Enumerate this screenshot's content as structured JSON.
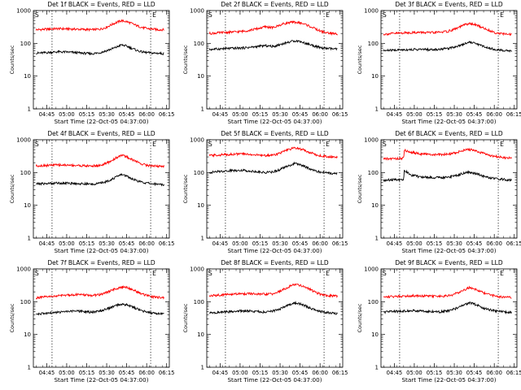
{
  "figure_colors": {
    "events": "#000000",
    "lld": "#ff0000",
    "marker": "#000000"
  },
  "chart_data": [
    {
      "type": "line",
      "title": "Det 1f BLACK = Events, RED = LLD",
      "xlabel": "Start Time (22-Oct-05 04:37:00)",
      "ylabel": "Counts/sec",
      "ylog": true,
      "ylim": [
        1,
        1000
      ],
      "xticklabels": [
        "04:45",
        "05:00",
        "05:15",
        "05:30",
        "05:45",
        "06:00",
        "06:15"
      ],
      "yticklabels": [
        "1",
        "10",
        "100",
        "1000"
      ],
      "x_range_minutes": [
        -2,
        100
      ],
      "x_minutes": [
        0,
        8,
        16,
        24,
        30,
        36,
        42,
        48,
        52,
        56,
        60,
        64,
        68,
        72,
        76,
        80,
        84,
        88,
        92,
        96
      ],
      "series": [
        {
          "color": "#ff0000",
          "values": [
            260,
            270,
            280,
            275,
            270,
            265,
            260,
            270,
            300,
            360,
            430,
            490,
            460,
            400,
            340,
            300,
            280,
            270,
            260,
            260
          ]
        },
        {
          "color": "#000000",
          "values": [
            50,
            52,
            55,
            54,
            52,
            50,
            48,
            52,
            58,
            66,
            75,
            90,
            82,
            70,
            60,
            54,
            52,
            50,
            50,
            48
          ]
        }
      ],
      "markers": {
        "left_minutes": 12,
        "right_minutes": 86,
        "corner_labels": [
          "S",
          "E"
        ]
      }
    },
    {
      "type": "line",
      "title": "Det 2f BLACK = Events, RED = LLD",
      "xlabel": "Start Time (22-Oct-05 04:37:00)",
      "ylabel": "Counts/sec",
      "ylog": true,
      "ylim": [
        1,
        1000
      ],
      "xticklabels": [
        "04:45",
        "05:00",
        "05:15",
        "05:30",
        "05:45",
        "06:00",
        "06:15"
      ],
      "yticklabels": [
        "1",
        "10",
        "100",
        "1000"
      ],
      "x_range_minutes": [
        -2,
        100
      ],
      "x_minutes": [
        0,
        8,
        16,
        24,
        30,
        36,
        42,
        48,
        52,
        56,
        60,
        64,
        68,
        72,
        76,
        80,
        84,
        88,
        92,
        96
      ],
      "series": [
        {
          "color": "#ff0000",
          "values": [
            200,
            210,
            220,
            230,
            250,
            280,
            320,
            300,
            350,
            400,
            430,
            440,
            420,
            380,
            320,
            270,
            230,
            210,
            200,
            190
          ]
        },
        {
          "color": "#000000",
          "values": [
            65,
            68,
            70,
            72,
            75,
            80,
            85,
            80,
            90,
            100,
            110,
            120,
            115,
            100,
            90,
            80,
            72,
            70,
            68,
            66
          ]
        }
      ],
      "markers": {
        "left_minutes": 12,
        "right_minutes": 86,
        "corner_labels": [
          "S",
          "E"
        ]
      }
    },
    {
      "type": "line",
      "title": "Det 3f BLACK = Events, RED = LLD",
      "xlabel": "Start Time (22-Oct-05 04:37:00)",
      "ylabel": "Counts/sec",
      "ylog": true,
      "ylim": [
        1,
        1000
      ],
      "xticklabels": [
        "04:45",
        "05:00",
        "05:15",
        "05:30",
        "05:45",
        "06:00",
        "06:15"
      ],
      "yticklabels": [
        "1",
        "10",
        "100",
        "1000"
      ],
      "x_range_minutes": [
        -2,
        100
      ],
      "x_minutes": [
        0,
        8,
        16,
        24,
        30,
        36,
        42,
        48,
        52,
        56,
        60,
        64,
        68,
        72,
        76,
        80,
        84,
        88,
        92,
        96
      ],
      "series": [
        {
          "color": "#ff0000",
          "values": [
            190,
            200,
            210,
            215,
            215,
            210,
            220,
            230,
            260,
            300,
            360,
            400,
            380,
            330,
            280,
            240,
            210,
            200,
            190,
            185
          ]
        },
        {
          "color": "#000000",
          "values": [
            60,
            62,
            64,
            65,
            65,
            64,
            66,
            70,
            76,
            84,
            95,
            110,
            102,
            90,
            78,
            70,
            65,
            62,
            60,
            58
          ]
        }
      ],
      "markers": {
        "left_minutes": 12,
        "right_minutes": 86,
        "corner_labels": [
          "S",
          "E"
        ]
      }
    },
    {
      "type": "line",
      "title": "Det 4f BLACK = Events, RED = LLD",
      "xlabel": "Start Time (22-Oct-05 04:37:00)",
      "ylabel": "Counts/sec",
      "ylog": true,
      "ylim": [
        1,
        1000
      ],
      "xticklabels": [
        "04:45",
        "05:00",
        "05:15",
        "05:30",
        "05:45",
        "06:00",
        "06:15"
      ],
      "yticklabels": [
        "1",
        "10",
        "100",
        "1000"
      ],
      "x_range_minutes": [
        -2,
        100
      ],
      "x_minutes": [
        0,
        8,
        16,
        24,
        30,
        36,
        42,
        48,
        52,
        56,
        60,
        64,
        68,
        72,
        76,
        80,
        84,
        88,
        92,
        96
      ],
      "series": [
        {
          "color": "#ff0000",
          "values": [
            160,
            165,
            170,
            168,
            165,
            160,
            158,
            165,
            185,
            220,
            280,
            340,
            300,
            250,
            210,
            180,
            165,
            160,
            155,
            155
          ]
        },
        {
          "color": "#000000",
          "values": [
            45,
            46,
            48,
            47,
            46,
            45,
            44,
            47,
            52,
            60,
            72,
            88,
            78,
            65,
            55,
            50,
            47,
            45,
            44,
            43
          ]
        }
      ],
      "markers": {
        "left_minutes": 12,
        "right_minutes": 86,
        "corner_labels": [
          "S",
          "E"
        ]
      }
    },
    {
      "type": "line",
      "title": "Det 5f BLACK = Events, RED = LLD",
      "xlabel": "Start Time (22-Oct-05 04:37:00)",
      "ylabel": "Counts/sec",
      "ylog": true,
      "ylim": [
        1,
        1000
      ],
      "xticklabels": [
        "04:45",
        "05:00",
        "05:15",
        "05:30",
        "05:45",
        "06:00",
        "06:15"
      ],
      "yticklabels": [
        "1",
        "10",
        "100",
        "1000"
      ],
      "x_range_minutes": [
        -2,
        100
      ],
      "x_minutes": [
        0,
        8,
        16,
        24,
        30,
        36,
        42,
        48,
        52,
        56,
        60,
        64,
        68,
        72,
        76,
        80,
        84,
        88,
        92,
        96
      ],
      "series": [
        {
          "color": "#ff0000",
          "values": [
            330,
            345,
            360,
            370,
            360,
            340,
            330,
            345,
            380,
            440,
            510,
            560,
            530,
            470,
            400,
            350,
            320,
            310,
            300,
            300
          ]
        },
        {
          "color": "#000000",
          "values": [
            100,
            108,
            115,
            118,
            112,
            105,
            100,
            105,
            120,
            140,
            165,
            190,
            175,
            150,
            125,
            110,
            102,
            98,
            95,
            95
          ]
        }
      ],
      "markers": {
        "left_minutes": 12,
        "right_minutes": 86,
        "corner_labels": [
          "S",
          "E"
        ]
      }
    },
    {
      "type": "line",
      "title": "Det 6f BLACK = Events, RED = LLD",
      "xlabel": "Start Time (22-Oct-05 04:37:00)",
      "ylabel": "Counts/sec",
      "ylog": true,
      "ylim": [
        1,
        1000
      ],
      "xticklabels": [
        "04:45",
        "05:00",
        "05:15",
        "05:30",
        "05:45",
        "06:00",
        "06:15"
      ],
      "yticklabels": [
        "1",
        "10",
        "100",
        "1000"
      ],
      "x_range_minutes": [
        -2,
        100
      ],
      "x_minutes": [
        0,
        8,
        15,
        15.5,
        20,
        26,
        32,
        38,
        44,
        50,
        56,
        60,
        64,
        68,
        72,
        76,
        80,
        86,
        92,
        96
      ],
      "series": [
        {
          "color": "#ff0000",
          "values": [
            260,
            265,
            270,
            480,
            420,
            380,
            360,
            350,
            350,
            370,
            420,
            480,
            500,
            470,
            420,
            370,
            330,
            300,
            280,
            270
          ]
        },
        {
          "color": "#000000",
          "values": [
            58,
            60,
            62,
            120,
            85,
            75,
            72,
            70,
            70,
            74,
            84,
            96,
            102,
            95,
            85,
            75,
            68,
            64,
            60,
            58
          ]
        }
      ],
      "markers": {
        "left_minutes": 12,
        "right_minutes": 86,
        "corner_labels": [
          "S",
          "E"
        ]
      }
    },
    {
      "type": "line",
      "title": "Det 7f BLACK = Events, RED = LLD",
      "xlabel": "Start Time (22-Oct-05 04:37:00)",
      "ylabel": "Counts/sec",
      "ylog": true,
      "ylim": [
        1,
        1000
      ],
      "xticklabels": [
        "04:45",
        "05:00",
        "05:15",
        "05:30",
        "05:45",
        "06:00",
        "06:15"
      ],
      "yticklabels": [
        "1",
        "10",
        "100",
        "1000"
      ],
      "x_range_minutes": [
        -2,
        100
      ],
      "x_minutes": [
        0,
        8,
        16,
        24,
        30,
        36,
        42,
        48,
        52,
        56,
        60,
        64,
        68,
        72,
        76,
        80,
        84,
        88,
        92,
        96
      ],
      "series": [
        {
          "color": "#ff0000",
          "values": [
            130,
            140,
            150,
            160,
            165,
            160,
            155,
            165,
            185,
            215,
            250,
            280,
            270,
            240,
            200,
            170,
            150,
            140,
            135,
            130
          ]
        },
        {
          "color": "#000000",
          "values": [
            42,
            44,
            47,
            50,
            52,
            50,
            48,
            52,
            58,
            66,
            76,
            85,
            80,
            70,
            60,
            52,
            48,
            45,
            43,
            42
          ]
        }
      ],
      "markers": {
        "left_minutes": 12,
        "right_minutes": 86,
        "corner_labels": [
          "S",
          "E"
        ]
      }
    },
    {
      "type": "line",
      "title": "Det 8f BLACK = Events, RED = LLD",
      "xlabel": "Start Time (22-Oct-05 04:37:00)",
      "ylabel": "Counts/sec",
      "ylog": true,
      "ylim": [
        1,
        1000
      ],
      "xticklabels": [
        "04:45",
        "05:00",
        "05:15",
        "05:30",
        "05:45",
        "06:00",
        "06:15"
      ],
      "yticklabels": [
        "1",
        "10",
        "100",
        "1000"
      ],
      "x_range_minutes": [
        -2,
        100
      ],
      "x_minutes": [
        0,
        8,
        16,
        24,
        30,
        36,
        42,
        48,
        52,
        56,
        60,
        64,
        68,
        72,
        76,
        80,
        84,
        88,
        92,
        96
      ],
      "series": [
        {
          "color": "#ff0000",
          "values": [
            150,
            160,
            170,
            175,
            175,
            170,
            168,
            175,
            200,
            240,
            290,
            340,
            320,
            280,
            230,
            190,
            165,
            155,
            150,
            148
          ]
        },
        {
          "color": "#000000",
          "values": [
            45,
            47,
            50,
            52,
            52,
            50,
            48,
            52,
            58,
            68,
            80,
            92,
            86,
            74,
            62,
            54,
            50,
            47,
            45,
            44
          ]
        }
      ],
      "markers": {
        "left_minutes": 12,
        "right_minutes": 86,
        "corner_labels": [
          "S",
          "E"
        ]
      }
    },
    {
      "type": "line",
      "title": "Det 9f BLACK = Events, RED = LLD",
      "xlabel": "Start Time (22-Oct-05 04:37:00)",
      "ylabel": "Counts/sec",
      "ylog": true,
      "ylim": [
        1,
        1000
      ],
      "xticklabels": [
        "04:45",
        "05:00",
        "05:15",
        "05:30",
        "05:45",
        "06:00",
        "06:15"
      ],
      "yticklabels": [
        "1",
        "10",
        "100",
        "1000"
      ],
      "x_range_minutes": [
        -2,
        100
      ],
      "x_minutes": [
        0,
        8,
        16,
        24,
        30,
        36,
        42,
        48,
        52,
        56,
        60,
        64,
        68,
        72,
        76,
        80,
        84,
        88,
        92,
        96
      ],
      "series": [
        {
          "color": "#ff0000",
          "values": [
            140,
            145,
            150,
            152,
            150,
            148,
            145,
            150,
            165,
            190,
            225,
            270,
            250,
            210,
            180,
            160,
            150,
            140,
            135,
            135
          ]
        },
        {
          "color": "#000000",
          "values": [
            48,
            50,
            52,
            53,
            52,
            50,
            49,
            52,
            58,
            66,
            78,
            92,
            85,
            72,
            62,
            56,
            52,
            50,
            48,
            47
          ]
        }
      ],
      "markers": {
        "left_minutes": 12,
        "right_minutes": 86,
        "corner_labels": [
          "S",
          "E"
        ]
      }
    }
  ]
}
